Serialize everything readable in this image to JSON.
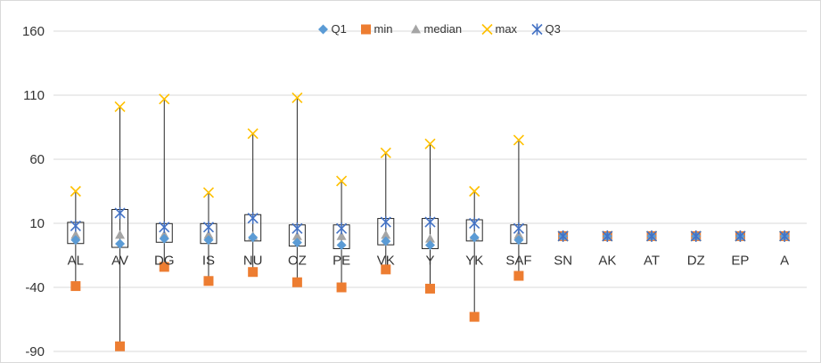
{
  "chart_data": {
    "type": "box",
    "title": "",
    "xlabel": "",
    "ylabel": "",
    "ylim": [
      -90,
      160
    ],
    "yticks": [
      160,
      110,
      60,
      10,
      -40,
      -90
    ],
    "grid": true,
    "legend_position": "top",
    "categories": [
      "AL",
      "AV",
      "DG",
      "IS",
      "NU",
      "OZ",
      "PE",
      "VK",
      "Y",
      "YK",
      "SAF",
      "SN",
      "AK",
      "AT",
      "DZ",
      "EP",
      "A"
    ],
    "series": [
      {
        "name": "Q1",
        "color": "#5b9bd5",
        "marker": "diamond",
        "values": [
          -3,
          -6,
          -2,
          -3,
          -1,
          -5,
          -7,
          -4,
          -7,
          -1,
          -3,
          0,
          0,
          0,
          0,
          0,
          0
        ]
      },
      {
        "name": "min",
        "color": "#ed7d31",
        "marker": "square",
        "values": [
          -39,
          -86,
          -24,
          -35,
          -28,
          -36,
          -40,
          -26,
          -41,
          -63,
          -31,
          0,
          0,
          0,
          0,
          0,
          0
        ]
      },
      {
        "name": "median",
        "color": "#a5a5a5",
        "marker": "triangle",
        "values": [
          1,
          1,
          1,
          1,
          0,
          0,
          0,
          1,
          -2,
          0,
          1,
          0,
          0,
          0,
          0,
          0,
          0
        ]
      },
      {
        "name": "max",
        "color": "#ffc000",
        "marker": "x",
        "values": [
          35,
          101,
          107,
          34,
          80,
          108,
          43,
          65,
          72,
          35,
          75,
          0,
          0,
          0,
          0,
          0,
          0
        ]
      },
      {
        "name": "Q3",
        "color": "#4472c4",
        "marker": "star",
        "values": [
          8,
          18,
          7,
          7,
          14,
          6,
          6,
          11,
          11,
          10,
          6,
          0,
          0,
          0,
          0,
          0,
          0
        ]
      }
    ]
  }
}
